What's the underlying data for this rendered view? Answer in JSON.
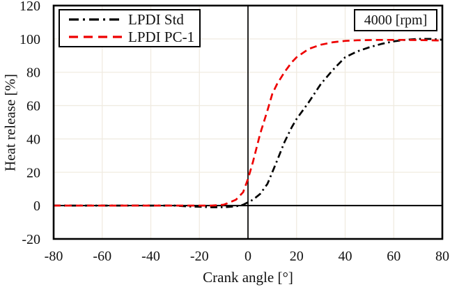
{
  "chart_data": {
    "type": "line",
    "title": "",
    "xlabel": "Crank angle [°]",
    "ylabel": "Heat release [%]",
    "xlim": [
      -80,
      80
    ],
    "ylim": [
      -20,
      120
    ],
    "x_ticks": [
      -80,
      -60,
      -40,
      -20,
      0,
      20,
      40,
      60,
      80
    ],
    "y_ticks": [
      -20,
      0,
      20,
      40,
      60,
      80,
      100,
      120
    ],
    "grid": true,
    "legend_position": "top-left",
    "annotation": "4000 [rpm]",
    "x": [
      -80,
      -70,
      -60,
      -50,
      -40,
      -30,
      -25,
      -20,
      -15,
      -10,
      -5,
      -2,
      0,
      2,
      5,
      8,
      10,
      12,
      15,
      18,
      20,
      25,
      30,
      35,
      40,
      45,
      50,
      55,
      60,
      65,
      70,
      75,
      80
    ],
    "series": [
      {
        "name": "LPDI Std",
        "color": "#000000",
        "style": "dash-dot",
        "values": [
          0,
          0,
          0,
          0,
          0,
          0,
          -0.5,
          -0.7,
          -1,
          -1,
          -0.5,
          0.5,
          2,
          3.5,
          7,
          13,
          20,
          27,
          38,
          47,
          52,
          62,
          73,
          81.5,
          89,
          92.5,
          95,
          97,
          98.5,
          99.5,
          100,
          100,
          99.5
        ]
      },
      {
        "name": "LPDI PC-1",
        "color": "#ee0000",
        "style": "dashed",
        "values": [
          0,
          0,
          0,
          0,
          0,
          0,
          0,
          0,
          0,
          0.5,
          3.5,
          8,
          16,
          26,
          43,
          57,
          67,
          73,
          80,
          86,
          89,
          94,
          96.5,
          98,
          98.8,
          99.2,
          99.3,
          99.4,
          99.4,
          99.4,
          99.3,
          99.2,
          99
        ]
      }
    ]
  },
  "style": {
    "grid_color": "#f0ebe1",
    "axis_color": "#000000",
    "background": "#ffffff",
    "tick_label_color": "#111111"
  }
}
